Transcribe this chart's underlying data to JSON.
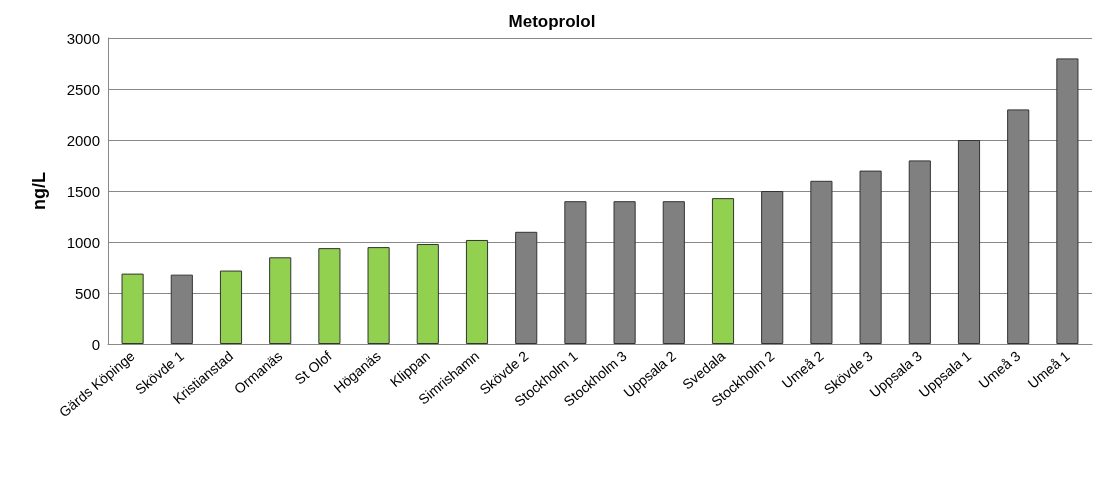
{
  "chart_data": {
    "type": "bar",
    "title": "Metoprolol",
    "ylabel": "ng/L",
    "categories": [
      "Gärds Köpinge",
      "Skövde 1",
      "Kristianstad",
      "Ormanäs",
      "St Olof",
      "Höganäs",
      "Klippan",
      "Simrishamn",
      "Skövde 2",
      "Stockholm 1",
      "Stockholm 3",
      "Uppsala 2",
      "Svedala",
      "Stockholm 2",
      "Umeå 2",
      "Skövde 3",
      "Uppsala 3",
      "Uppsala 1",
      "Umeå 3",
      "Umeå 1"
    ],
    "values": [
      690,
      680,
      720,
      850,
      940,
      950,
      980,
      1020,
      1100,
      1400,
      1400,
      1400,
      1430,
      1500,
      1600,
      1700,
      1800,
      2000,
      2300,
      2800
    ],
    "colors": [
      "#92d050",
      "#808080",
      "#92d050",
      "#92d050",
      "#92d050",
      "#92d050",
      "#92d050",
      "#92d050",
      "#808080",
      "#808080",
      "#808080",
      "#808080",
      "#92d050",
      "#808080",
      "#808080",
      "#808080",
      "#808080",
      "#808080",
      "#808080",
      "#808080"
    ],
    "ylim": [
      0,
      3000
    ],
    "yticks": [
      0,
      500,
      1000,
      1500,
      2000,
      2500,
      3000
    ],
    "grid": "y"
  }
}
